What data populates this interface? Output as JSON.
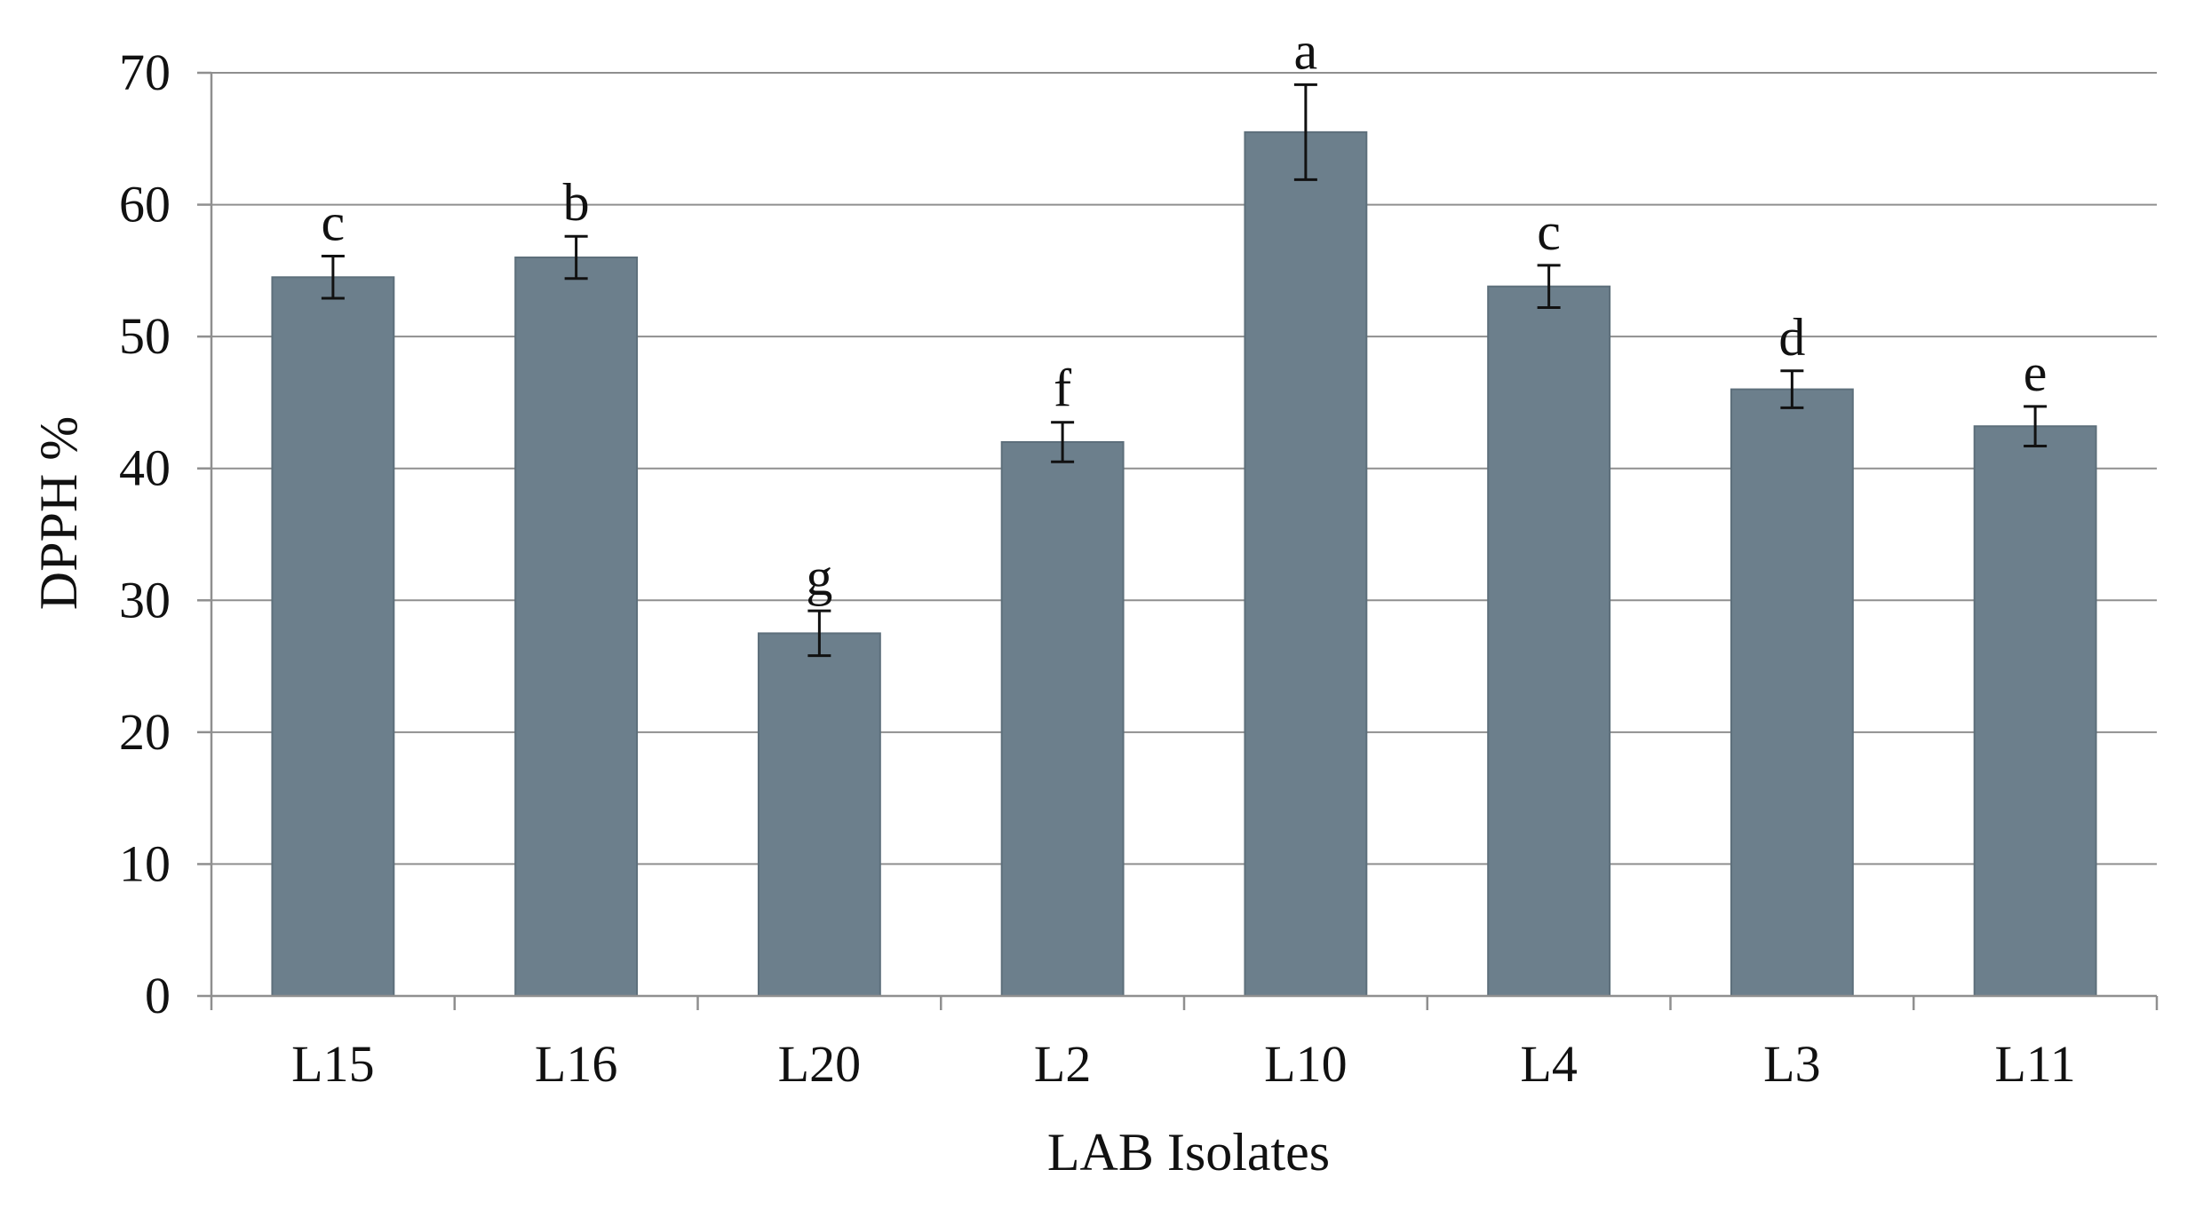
{
  "chart_data": {
    "type": "bar",
    "title": "",
    "xlabel": "LAB Isolates",
    "ylabel": "DPPH %",
    "ylim": [
      0,
      70
    ],
    "yticks": [
      0,
      10,
      20,
      30,
      40,
      50,
      60,
      70
    ],
    "grid": true,
    "categories": [
      "L15",
      "L16",
      "L20",
      "L2",
      "L10",
      "L4",
      "L3",
      "L11"
    ],
    "values": [
      54.5,
      56,
      27.5,
      42,
      65.5,
      53.8,
      46,
      43.2
    ],
    "errors": [
      1.6,
      1.6,
      1.7,
      1.5,
      3.6,
      1.6,
      1.4,
      1.5
    ],
    "annotations": [
      "c",
      "b",
      "g",
      "f",
      "a",
      "c",
      "d",
      "e"
    ],
    "colors": {
      "bar": "#6c7f8c",
      "grid": "#8f8f8f",
      "text": "#111111"
    }
  }
}
